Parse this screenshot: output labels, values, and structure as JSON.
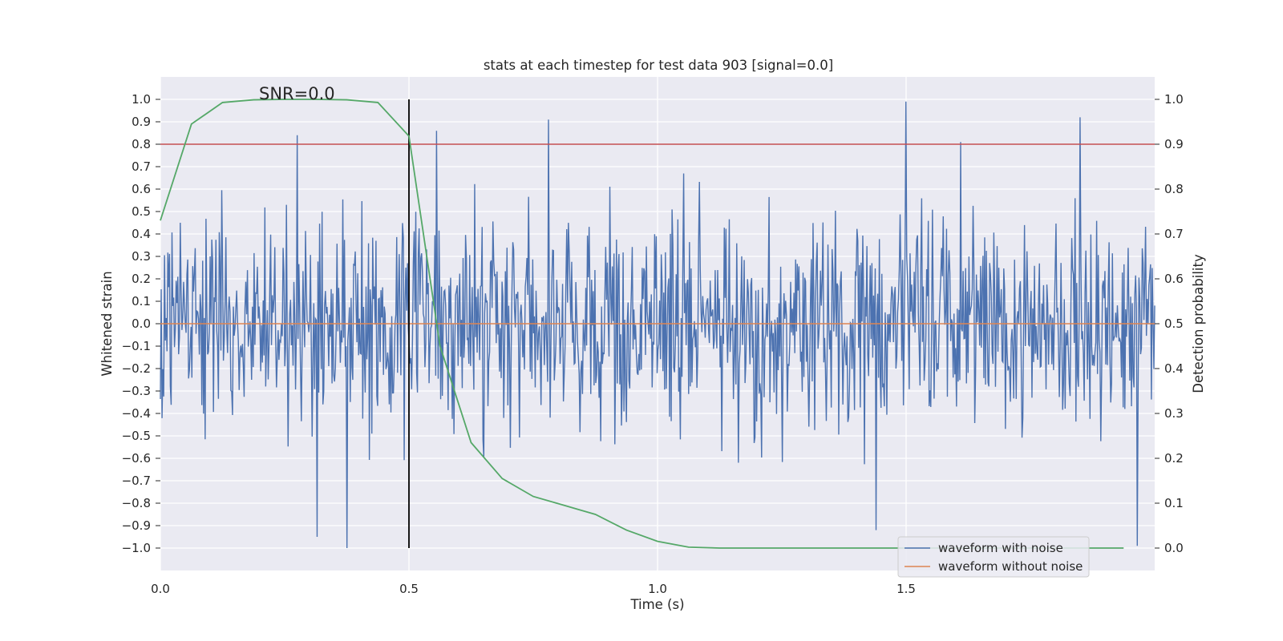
{
  "chart_data": {
    "type": "line",
    "title": "stats at each timestep for test data 903 [signal=0.0]",
    "xlabel": "Time (s)",
    "ylabel": "Whitened strain",
    "y2label": "Detection probability",
    "xlim": [
      0.0,
      2.0
    ],
    "ylim": [
      -1.1,
      1.1
    ],
    "y2lim": [
      -0.05,
      1.05
    ],
    "x_ticks": [
      0.0,
      0.5,
      1.0,
      1.5
    ],
    "x_tick_labels": [
      "0.0",
      "0.5",
      "1.0",
      "1.5"
    ],
    "y_ticks": [
      -1.0,
      -0.9,
      -0.8,
      -0.7,
      -0.6,
      -0.5,
      -0.4,
      -0.3,
      -0.2,
      -0.1,
      0.0,
      0.1,
      0.2,
      0.3,
      0.4,
      0.5,
      0.6,
      0.7,
      0.8,
      0.9,
      1.0
    ],
    "y_tick_labels": [
      "−1.0",
      "−0.9",
      "−0.8",
      "−0.7",
      "−0.6",
      "−0.5",
      "−0.4",
      "−0.3",
      "−0.2",
      "−0.1",
      "0.0",
      "0.1",
      "0.2",
      "0.3",
      "0.4",
      "0.5",
      "0.6",
      "0.7",
      "0.8",
      "0.9",
      "1.0"
    ],
    "y2_ticks": [
      0.0,
      0.1,
      0.2,
      0.3,
      0.4,
      0.5,
      0.6,
      0.7,
      0.8,
      0.9,
      1.0
    ],
    "y2_tick_labels": [
      "0.0",
      "0.1",
      "0.2",
      "0.3",
      "0.4",
      "0.5",
      "0.6",
      "0.7",
      "0.8",
      "0.9",
      "1.0"
    ],
    "grid": true,
    "legend_position": "lower right",
    "annotation": "SNR=0.0",
    "vertical_line_x": 0.5,
    "vertical_line_range": [
      -1.0,
      1.0
    ],
    "threshold_line": {
      "axis": "right",
      "y": 0.9,
      "color": "#c44e52"
    },
    "series": [
      {
        "name": "waveform with noise",
        "axis": "left",
        "color": "#4c72b0",
        "style": "dense noise, amplitude mostly within ±0.6",
        "sample_count": 1200,
        "x_range": [
          0.0,
          2.0
        ],
        "extremes": [
          {
            "x": 0.275,
            "y": 0.84
          },
          {
            "x": 0.376,
            "y": -1.0
          },
          {
            "x": 0.555,
            "y": 0.86
          },
          {
            "x": 0.78,
            "y": 0.91
          },
          {
            "x": 1.5,
            "y": 0.99
          },
          {
            "x": 1.85,
            "y": 0.92
          },
          {
            "x": 1.61,
            "y": 0.81
          },
          {
            "x": 1.44,
            "y": -0.92
          },
          {
            "x": 0.315,
            "y": -0.95
          },
          {
            "x": 1.965,
            "y": -0.99
          }
        ]
      },
      {
        "name": "waveform without noise",
        "axis": "left",
        "color": "#dd8452",
        "x": [
          0.0,
          2.0
        ],
        "y": [
          0.0,
          0.0
        ]
      },
      {
        "axis": "right",
        "color": "#55a868",
        "x": [
          0.0,
          0.0625,
          0.125,
          0.1875,
          0.25,
          0.3125,
          0.375,
          0.4375,
          0.5,
          0.5625,
          0.625,
          0.6875,
          0.75,
          0.8125,
          0.875,
          0.9375,
          1.0,
          1.0625,
          1.125,
          1.1875,
          1.25,
          1.3125,
          1.375,
          1.4375,
          1.5,
          1.5625,
          1.625,
          1.6875,
          1.75,
          1.8125,
          1.875,
          1.9375
        ],
        "y": [
          0.73,
          0.945,
          0.993,
          0.999,
          1.0,
          1.0,
          0.999,
          0.993,
          0.918,
          0.45,
          0.235,
          0.155,
          0.115,
          0.095,
          0.075,
          0.04,
          0.015,
          0.002,
          0.0,
          0.0,
          0.0,
          0.0,
          0.0,
          0.0,
          0.0,
          0.0,
          0.0,
          0.0,
          0.0,
          0.0,
          0.0,
          0.0
        ]
      }
    ]
  }
}
